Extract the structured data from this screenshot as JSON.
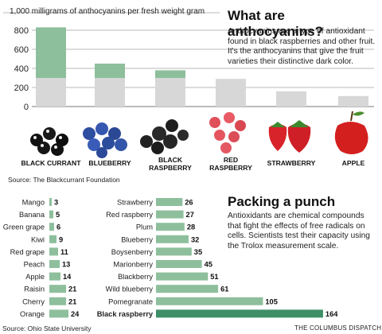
{
  "top": {
    "unit_label": "1,000 milligrams of anthocyanins per fresh weight gram",
    "title": "What are anthocyanins?",
    "text": "Anthocyanins are a type of antioxidant found in black raspberries and other fruit. It's the anthocyanins that give the fruit varieties their distinctive dark color.",
    "source": "Source: The Blackcurrant Foundation"
  },
  "bottom": {
    "title": "Packing a punch",
    "text": "Antioxidants are chemical compounds that fight the effects of free radicals on cells. Scientists test their capacity using the Trolox measurement scale.",
    "source": "Source: Ohio State University",
    "credit": "THE COLUMBUS DISPATCH"
  },
  "colors": {
    "bar_top": "#8ebf9c",
    "bar_bottom": "#d7d7d7",
    "bar_small": "#8ebf9c",
    "bar_highlight": "#3e8f67",
    "axis": "#777777"
  },
  "chart_data": [
    {
      "type": "bar",
      "categories": [
        "BLACK CURRANT",
        "BLUEBERRY",
        "BLACK RASPBERRY",
        "RED RASPBERRY",
        "STRAWBERRY",
        "APPLE"
      ],
      "values": [
        830,
        450,
        380,
        290,
        160,
        110
      ],
      "yticks": [
        0,
        200,
        400,
        600,
        800
      ],
      "ytick_labels": [
        "0",
        "200",
        "400",
        "600",
        "800"
      ],
      "ylim": [
        0,
        1000
      ]
    },
    {
      "type": "bar",
      "orientation": "horizontal",
      "categories": [
        "Mango",
        "Banana",
        "Green grape",
        "Kiwi",
        "Red grape",
        "Peach",
        "Apple",
        "Raisin",
        "Cherry",
        "Orange"
      ],
      "values": [
        3,
        5,
        6,
        9,
        11,
        13,
        14,
        21,
        21,
        24
      ]
    },
    {
      "type": "bar",
      "orientation": "horizontal",
      "categories": [
        "Strawberry",
        "Red raspberry",
        "Plum",
        "Blueberry",
        "Boysenberry",
        "Marionberry",
        "Blackberry",
        "Wild blueberry",
        "Pomegranate",
        "Black raspberry"
      ],
      "values": [
        26,
        27,
        28,
        32,
        35,
        45,
        51,
        61,
        105,
        164
      ]
    }
  ]
}
